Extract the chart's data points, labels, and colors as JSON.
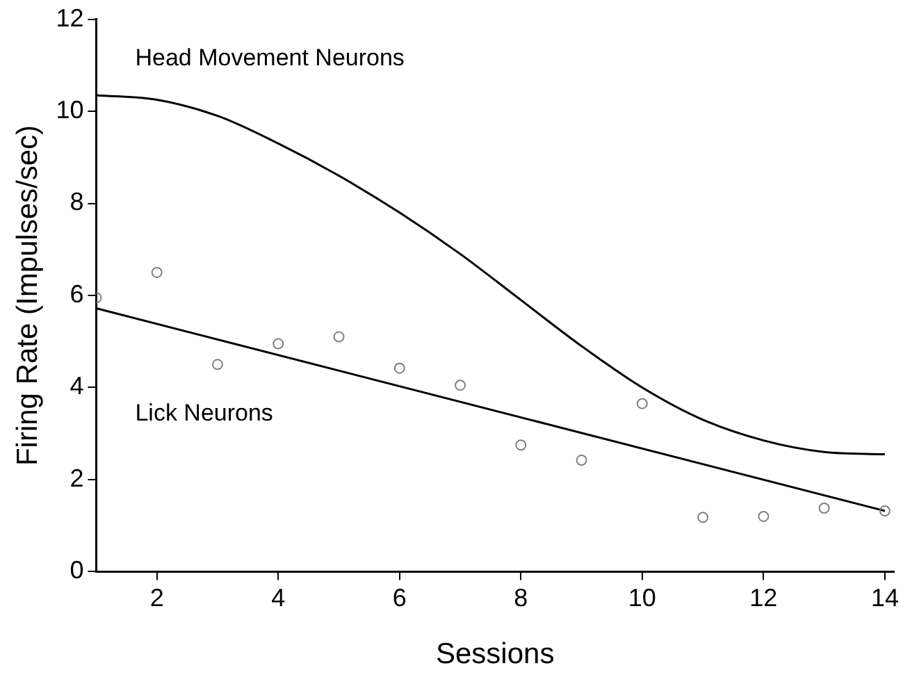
{
  "chart_data": {
    "type": "scatter",
    "xlabel": "Sessions",
    "ylabel": "Firing Rate (Impulses/sec)",
    "xlim": [
      1,
      14.15
    ],
    "xticks": [
      2,
      4,
      6,
      8,
      10,
      12,
      14
    ],
    "ylim": [
      0,
      12
    ],
    "yticks": [
      0,
      2,
      4,
      6,
      8,
      10,
      12
    ],
    "grid": false,
    "legend": false,
    "marker": "circle",
    "series": [
      {
        "color": "#808080",
        "x": [
          1,
          2,
          3,
          4,
          5,
          6,
          7,
          8,
          9,
          10,
          11,
          12,
          13,
          14
        ],
        "values": [
          5.95,
          6.5,
          4.5,
          4.95,
          5.1,
          4.42,
          4.05,
          2.75,
          2.42,
          3.65,
          1.18,
          1.2,
          1.38,
          1.32
        ]
      },
      {
        "type": "line",
        "name": "Lick Neurons",
        "color": "#000000",
        "marker": "none",
        "x": [
          1,
          14
        ],
        "values": [
          5.72,
          1.32
        ]
      },
      {
        "type": "line",
        "name": "Head Movement Neurons",
        "color": "#000000",
        "marker": "none",
        "x": [
          1,
          2,
          3,
          4,
          5,
          6,
          7,
          8,
          9,
          10,
          11,
          12,
          13,
          14
        ],
        "values": [
          10.35,
          10.25,
          9.9,
          9.3,
          8.6,
          7.8,
          6.9,
          5.9,
          4.9,
          4.0,
          3.3,
          2.85,
          2.6,
          2.55
        ]
      }
    ]
  }
}
